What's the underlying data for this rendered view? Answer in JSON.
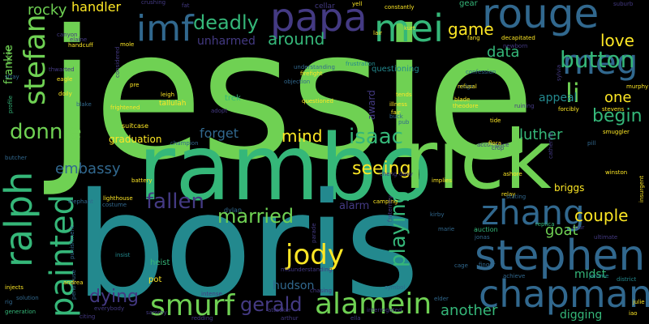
{
  "palette": {
    "background": "#000000",
    "lime": "#6fd153",
    "green": "#35b779",
    "teal": "#23898e",
    "blue": "#31688e",
    "indigo": "#443a83",
    "purple": "#440154",
    "yellow": "#fde725"
  },
  "words": [
    "jessie",
    "rambo",
    "rick",
    "boris",
    "papa",
    "rouge",
    "meg",
    "mei",
    "imf",
    "stephen",
    "chapman",
    "zhang",
    "ralph",
    "painted",
    "stefan",
    "smurf",
    "alamein",
    "button",
    "deadly",
    "jody",
    "isaac",
    "donnie",
    "gerald",
    "fallen",
    "married",
    "couple",
    "playing",
    "dying",
    "another",
    "mind",
    "seeing",
    "around",
    "begin",
    "li",
    "one",
    "love",
    "game",
    "data",
    "luther",
    "goat",
    "embassy",
    "forget",
    "handler",
    "rocky",
    "frankie",
    "unharmed",
    "appeal",
    "graduation",
    "briggs",
    "midst",
    "hudson",
    "award",
    "alarm",
    "questioning",
    "cellar",
    "gear",
    "suitcase",
    "tallulah",
    "trek",
    "heist",
    "pot",
    "dylan",
    "lighthouse",
    "battery",
    "eagle",
    "blake",
    "doily",
    "thwarted",
    "stray",
    "butcher",
    "rig",
    "injects",
    "generation",
    "solution",
    "profile",
    "elephant",
    "insist",
    "camping",
    "kirby",
    "auction",
    "cage",
    "confession",
    "ridge",
    "relay",
    "stating",
    "replica",
    "tour",
    "ultimate",
    "jerome",
    "district",
    "julie",
    "iao",
    "digging",
    "winston",
    "smuggler",
    "pill",
    "tide",
    "buck",
    "pub",
    "accomplice",
    "ashore",
    "achieve",
    "finger",
    "symbol",
    "interrogated",
    "chasing",
    "attacker",
    "arthur",
    "ella",
    "elder",
    "marie",
    "jonas",
    "fraternity",
    "parade",
    "misunderstanding",
    "costume",
    "punishment",
    "penthouse",
    "everybody",
    "citing",
    "redding",
    "intense",
    "sammy",
    "andrea",
    "champion",
    "adopt",
    "understanding",
    "firefight",
    "objection",
    "questioned",
    "frustration",
    "canyon",
    "elaine",
    "handcuff",
    "mole",
    "crushing",
    "fat",
    "considered",
    "frightened",
    "leigh",
    "pre",
    "constantly",
    "kurt",
    "lair",
    "fang",
    "decapitated",
    "newborn",
    "sylvia",
    "murphy",
    "stevens",
    "forcibly",
    "theodore",
    "ruining",
    "blade",
    "refusal",
    "illness",
    "tends",
    "fair",
    "cheng",
    "davy",
    "implies",
    "flora",
    "crop",
    "catherine",
    "insurgent",
    "suburb",
    "frankie",
    "yell"
  ]
}
